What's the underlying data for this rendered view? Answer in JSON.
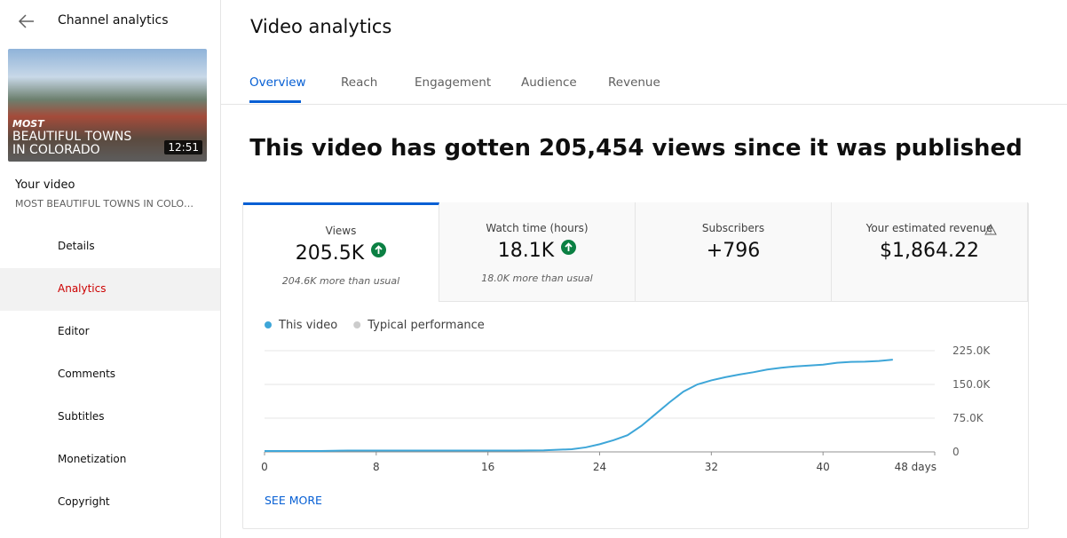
{
  "sidebar": {
    "back_title": "Channel analytics",
    "thumbnail": {
      "overlay_lines": [
        "MOST",
        "BEAUTIFUL TOWNS",
        "IN COLORADO"
      ],
      "duration": "12:51"
    },
    "your_video_label": "Your video",
    "video_title": "MOST BEAUTIFUL TOWNS IN COLO…",
    "nav": [
      {
        "label": "Details"
      },
      {
        "label": "Analytics",
        "active": true
      },
      {
        "label": "Editor"
      },
      {
        "label": "Comments"
      },
      {
        "label": "Subtitles"
      },
      {
        "label": "Monetization"
      },
      {
        "label": "Copyright"
      }
    ]
  },
  "header": {
    "title": "Video analytics"
  },
  "tabs": [
    {
      "label": "Overview",
      "active": true
    },
    {
      "label": "Reach"
    },
    {
      "label": "Engagement"
    },
    {
      "label": "Audience"
    },
    {
      "label": "Revenue"
    }
  ],
  "headline": "This video has gotten 205,454 views since it was published",
  "metrics": [
    {
      "label": "Views",
      "value": "205.5K",
      "note": "204.6K more than usual",
      "trend": "up",
      "selected": true
    },
    {
      "label": "Watch time (hours)",
      "value": "18.1K",
      "note": "18.0K more than usual",
      "trend": "up"
    },
    {
      "label": "Subscribers",
      "value": "+796"
    },
    {
      "label": "Your estimated revenue",
      "value": "$1,864.22",
      "warning": true
    }
  ],
  "chart_data": {
    "type": "line",
    "x": [
      0,
      2,
      4,
      6,
      8,
      10,
      12,
      14,
      16,
      18,
      20,
      22,
      23,
      24,
      25,
      26,
      27,
      28,
      29,
      30,
      31,
      32,
      33,
      34,
      35,
      36,
      37,
      38,
      39,
      40,
      41,
      42,
      43,
      44,
      45
    ],
    "series": [
      {
        "name": "This video",
        "color": "#3ea6d8",
        "values": [
          2000,
          2000,
          2000,
          3000,
          3000,
          3000,
          3000,
          3000,
          3000,
          3000,
          3500,
          6000,
          10000,
          17000,
          26000,
          37000,
          58000,
          84000,
          110000,
          134000,
          150000,
          159000,
          166000,
          172000,
          177000,
          183000,
          187000,
          190000,
          192000,
          194000,
          198000,
          200000,
          200500,
          202000,
          205000
        ]
      },
      {
        "name": "Typical performance",
        "color": "#cccccc",
        "values": [
          null,
          null,
          null,
          null,
          null,
          null,
          null,
          null,
          null,
          null,
          null,
          null,
          null,
          null,
          null,
          null,
          null,
          null,
          null,
          null,
          null,
          null,
          null,
          null,
          null,
          null,
          null,
          null,
          null,
          null,
          null,
          null,
          null,
          null,
          null
        ]
      }
    ],
    "xlim": [
      0,
      48
    ],
    "xticks": [
      0,
      8,
      16,
      24,
      32,
      40,
      {
        "value": 48,
        "label": "48 days"
      }
    ],
    "ylim": [
      0,
      225000
    ],
    "yticks": [
      0,
      {
        "value": 75000,
        "label": "75.0K"
      },
      {
        "value": 150000,
        "label": "150.0K"
      },
      {
        "value": 225000,
        "label": "225.0K"
      }
    ],
    "grid": true,
    "legend": "top-left"
  },
  "see_more": "SEE MORE"
}
